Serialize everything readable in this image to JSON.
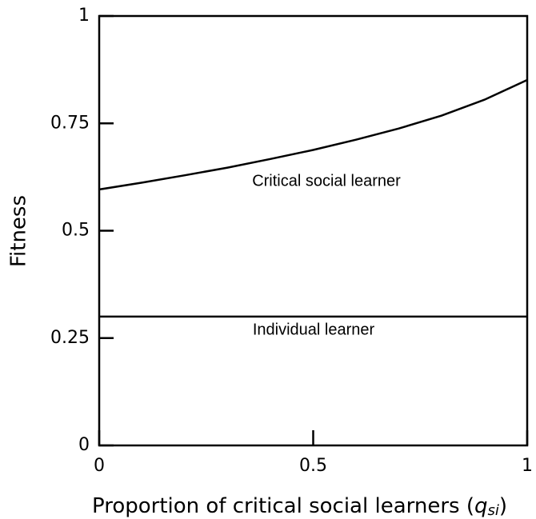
{
  "chart_data": {
    "type": "line",
    "ylabel": "Fitness",
    "xlabel": {
      "prefix": "Proportion of critical social learners (",
      "symbol": "q",
      "subscript": "si",
      "suffix": ")"
    },
    "x": [
      0,
      0.1,
      0.2,
      0.3,
      0.4,
      0.5,
      0.6,
      0.7,
      0.8,
      0.9,
      1
    ],
    "series": [
      {
        "name": "Critical social learner",
        "color": "#000000",
        "values": [
          0.596,
          0.612,
          0.629,
          0.647,
          0.667,
          0.688,
          0.712,
          0.738,
          0.768,
          0.805,
          0.851
        ]
      },
      {
        "name": "Individual learner",
        "color": "#000000",
        "values": [
          0.3,
          0.3,
          0.3,
          0.3,
          0.3,
          0.3,
          0.3,
          0.3,
          0.3,
          0.3,
          0.3
        ]
      }
    ],
    "xlim": [
      0,
      1
    ],
    "xticks": [
      0,
      0.5,
      1
    ],
    "ylim": [
      0,
      1
    ],
    "yticks": [
      0,
      0.25,
      0.5,
      0.75,
      1
    ],
    "grid": false
  }
}
